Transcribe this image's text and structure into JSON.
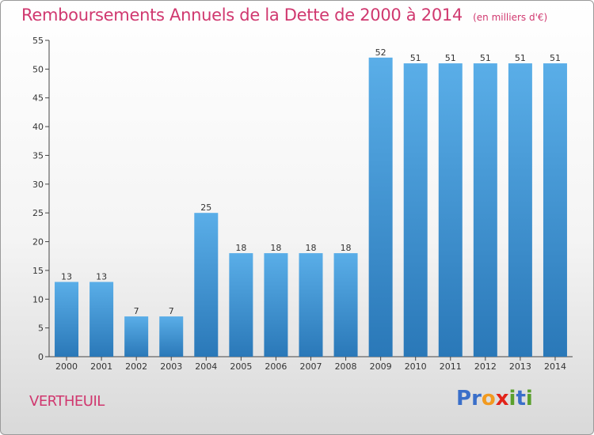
{
  "header": {
    "title": "Remboursements Annuels de la Dette de 2000 à 2014",
    "subtitle": "(en milliers d'€)"
  },
  "commune": "VERTHEUIL",
  "logo": {
    "text": "Proxiti",
    "letters": [
      "P",
      "r",
      "o",
      "x",
      "i",
      "t",
      "i"
    ],
    "colors": [
      "#3a6fc9",
      "#3a6fc9",
      "#f29a1f",
      "#e2231a",
      "#5aa02c",
      "#3a6fc9",
      "#5aa02c"
    ]
  },
  "colors": {
    "bar_light": "#5aaee8",
    "bar_dark": "#2a78b8",
    "title": "#d0386f"
  },
  "chart_data": {
    "type": "bar",
    "title": "Remboursements Annuels de la Dette de 2000 à 2014",
    "subtitle": "(en milliers d'€)",
    "categories": [
      "2000",
      "2001",
      "2002",
      "2003",
      "2004",
      "2005",
      "2006",
      "2007",
      "2008",
      "2009",
      "2010",
      "2011",
      "2012",
      "2013",
      "2014"
    ],
    "values": [
      13,
      13,
      7,
      7,
      25,
      18,
      18,
      18,
      18,
      52,
      51,
      51,
      51,
      51,
      51
    ],
    "ylim": [
      0,
      55
    ],
    "yticks": [
      0,
      5,
      10,
      15,
      20,
      25,
      30,
      35,
      40,
      45,
      50,
      55
    ],
    "grid": false,
    "xlabel": "",
    "ylabel": ""
  }
}
